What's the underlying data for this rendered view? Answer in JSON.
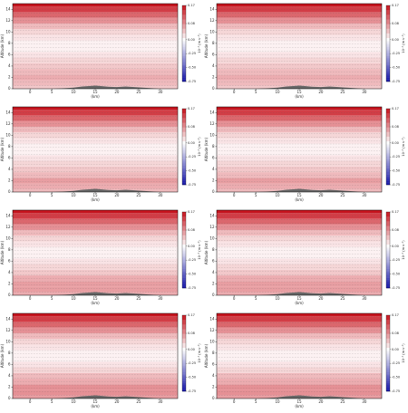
{
  "chart_data": [
    {
      "type": "contour",
      "xlabel": "(km)",
      "ylabel": "Altitude (km)",
      "colorbar_label": "10⁻² (m s⁻¹)",
      "xlim": [
        -4,
        34
      ],
      "ylim": [
        0,
        15
      ],
      "xticks": [
        0,
        5,
        10,
        15,
        20,
        25,
        30
      ],
      "yticks": [
        0,
        2,
        4,
        6,
        8,
        10,
        12,
        14
      ],
      "clim": [
        -0.75,
        0.17
      ],
      "cticks": [
        0.17,
        0.08,
        {
          "value": 0,
          "label": "0.00"
        },
        -0.25,
        {
          "value": -0.5,
          "label": "-0.50"
        },
        -0.75
      ],
      "levels": [
        0,
        1,
        2,
        3,
        4,
        5,
        6,
        7,
        8,
        9,
        10,
        11,
        12,
        13,
        14,
        15
      ],
      "values": [
        0.04,
        0.05,
        0.06,
        0.05,
        0.04,
        0.03,
        0.02,
        0.01,
        0.01,
        0.02,
        0.03,
        0.05,
        0.08,
        0.11,
        0.14,
        0.17
      ],
      "terrain_x": [
        5,
        8,
        10,
        12,
        14,
        15,
        16,
        18,
        20,
        22,
        24,
        26,
        28,
        30
      ],
      "terrain_h": [
        0,
        0.1,
        0.2,
        0.4,
        0.5,
        0.55,
        0.5,
        0.35,
        0.3,
        0.4,
        0.3,
        0.2,
        0.1,
        0
      ]
    },
    {
      "type": "contour",
      "xlabel": "(km)",
      "ylabel": "Altitude (km)",
      "colorbar_label": "10⁻² (m s⁻¹)",
      "xlim": [
        -4,
        34
      ],
      "ylim": [
        0,
        15
      ],
      "xticks": [
        0,
        5,
        10,
        15,
        20,
        25,
        30
      ],
      "yticks": [
        0,
        2,
        4,
        6,
        8,
        10,
        12,
        14
      ],
      "clim": [
        -0.75,
        0.17
      ],
      "cticks": [
        0.17,
        0.08,
        {
          "value": 0,
          "label": "0.00"
        },
        -0.25,
        {
          "value": -0.5,
          "label": "-0.50"
        },
        -0.75
      ],
      "levels": [
        0,
        1,
        2,
        3,
        4,
        5,
        6,
        7,
        8,
        9,
        10,
        11,
        12,
        13,
        14,
        15
      ],
      "values": [
        0.04,
        0.05,
        0.06,
        0.05,
        0.04,
        0.03,
        0.02,
        0.01,
        0.01,
        0.02,
        0.03,
        0.05,
        0.08,
        0.11,
        0.14,
        0.17
      ],
      "terrain_x": [
        5,
        8,
        10,
        12,
        14,
        15,
        16,
        18,
        20,
        22,
        24,
        26,
        28,
        30
      ],
      "terrain_h": [
        0,
        0.1,
        0.2,
        0.4,
        0.5,
        0.55,
        0.5,
        0.35,
        0.3,
        0.4,
        0.3,
        0.2,
        0.1,
        0
      ]
    },
    {
      "type": "contour",
      "xlabel": "(km)",
      "ylabel": "Altitude (km)",
      "colorbar_label": "10⁻² (m s⁻¹)",
      "xlim": [
        -4,
        34
      ],
      "ylim": [
        0,
        15
      ],
      "xticks": [
        0,
        5,
        10,
        15,
        20,
        25,
        30
      ],
      "yticks": [
        0,
        2,
        4,
        6,
        8,
        10,
        12,
        14
      ],
      "clim": [
        -0.75,
        0.17
      ],
      "cticks": [
        0.17,
        0.08,
        {
          "value": 0,
          "label": "0.00"
        },
        -0.25,
        {
          "value": -0.5,
          "label": "-0.50"
        },
        -0.75
      ],
      "levels": [
        0,
        1,
        2,
        3,
        4,
        5,
        6,
        7,
        8,
        9,
        10,
        11,
        12,
        13,
        14,
        15
      ],
      "values": [
        0.05,
        0.06,
        0.07,
        0.05,
        0.04,
        0.03,
        0.02,
        0.01,
        0.01,
        0.02,
        0.03,
        0.05,
        0.08,
        0.11,
        0.14,
        0.17
      ],
      "terrain_x": [
        5,
        8,
        10,
        12,
        14,
        15,
        16,
        18,
        20,
        22,
        24,
        26,
        28,
        30
      ],
      "terrain_h": [
        0,
        0.1,
        0.2,
        0.4,
        0.5,
        0.55,
        0.5,
        0.35,
        0.3,
        0.4,
        0.3,
        0.2,
        0.1,
        0
      ]
    },
    {
      "type": "contour",
      "xlabel": "(km)",
      "ylabel": "Altitude (km)",
      "colorbar_label": "10⁻² (m s⁻¹)",
      "xlim": [
        -4,
        34
      ],
      "ylim": [
        0,
        15
      ],
      "xticks": [
        0,
        5,
        10,
        15,
        20,
        25,
        30
      ],
      "yticks": [
        0,
        2,
        4,
        6,
        8,
        10,
        12,
        14
      ],
      "clim": [
        -0.75,
        0.17
      ],
      "cticks": [
        0.17,
        0.08,
        {
          "value": 0,
          "label": "0.00"
        },
        -0.25,
        {
          "value": -0.5,
          "label": "-0.50"
        },
        -0.75
      ],
      "levels": [
        0,
        1,
        2,
        3,
        4,
        5,
        6,
        7,
        8,
        9,
        10,
        11,
        12,
        13,
        14,
        15
      ],
      "values": [
        0.05,
        0.06,
        0.07,
        0.05,
        0.04,
        0.03,
        0.02,
        0.01,
        0.01,
        0.02,
        0.03,
        0.05,
        0.08,
        0.11,
        0.14,
        0.17
      ],
      "terrain_x": [
        5,
        8,
        10,
        12,
        14,
        15,
        16,
        18,
        20,
        22,
        24,
        26,
        28,
        30
      ],
      "terrain_h": [
        0,
        0.1,
        0.2,
        0.4,
        0.5,
        0.55,
        0.5,
        0.35,
        0.3,
        0.4,
        0.3,
        0.2,
        0.1,
        0
      ]
    },
    {
      "type": "contour",
      "xlabel": "(km)",
      "ylabel": "Altitude (km)",
      "colorbar_label": "10⁻² (m s⁻¹)",
      "xlim": [
        -4,
        34
      ],
      "ylim": [
        0,
        15
      ],
      "xticks": [
        0,
        5,
        10,
        15,
        20,
        25,
        30
      ],
      "yticks": [
        0,
        2,
        4,
        6,
        8,
        10,
        12,
        14
      ],
      "clim": [
        -0.75,
        0.17
      ],
      "cticks": [
        0.17,
        0.08,
        {
          "value": 0,
          "label": "0.00"
        },
        -0.25,
        {
          "value": -0.5,
          "label": "-0.50"
        },
        -0.75
      ],
      "levels": [
        0,
        1,
        2,
        3,
        4,
        5,
        6,
        7,
        8,
        9,
        10,
        11,
        12,
        13,
        14,
        15
      ],
      "values": [
        0.06,
        0.07,
        0.07,
        0.06,
        0.04,
        0.03,
        0.02,
        0.01,
        0.01,
        0.02,
        0.03,
        0.05,
        0.08,
        0.11,
        0.14,
        0.17
      ],
      "terrain_x": [
        5,
        8,
        10,
        12,
        14,
        15,
        16,
        18,
        20,
        22,
        24,
        26,
        28,
        30
      ],
      "terrain_h": [
        0,
        0.1,
        0.2,
        0.4,
        0.5,
        0.55,
        0.5,
        0.35,
        0.3,
        0.4,
        0.3,
        0.2,
        0.1,
        0
      ]
    },
    {
      "type": "contour",
      "xlabel": "(km)",
      "ylabel": "Altitude (km)",
      "colorbar_label": "10⁻² (m s⁻¹)",
      "xlim": [
        -4,
        34
      ],
      "ylim": [
        0,
        15
      ],
      "xticks": [
        0,
        5,
        10,
        15,
        20,
        25,
        30
      ],
      "yticks": [
        0,
        2,
        4,
        6,
        8,
        10,
        12,
        14
      ],
      "clim": [
        -0.75,
        0.17
      ],
      "cticks": [
        0.17,
        0.08,
        {
          "value": 0,
          "label": "0.00"
        },
        -0.25,
        {
          "value": -0.5,
          "label": "-0.50"
        },
        -0.75
      ],
      "levels": [
        0,
        1,
        2,
        3,
        4,
        5,
        6,
        7,
        8,
        9,
        10,
        11,
        12,
        13,
        14,
        15
      ],
      "values": [
        0.06,
        0.07,
        0.07,
        0.06,
        0.04,
        0.03,
        0.02,
        0.01,
        0.01,
        0.02,
        0.03,
        0.05,
        0.08,
        0.11,
        0.14,
        0.17
      ],
      "terrain_x": [
        5,
        8,
        10,
        12,
        14,
        15,
        16,
        18,
        20,
        22,
        24,
        26,
        28,
        30
      ],
      "terrain_h": [
        0,
        0.1,
        0.2,
        0.4,
        0.5,
        0.55,
        0.5,
        0.35,
        0.3,
        0.4,
        0.3,
        0.2,
        0.1,
        0
      ]
    },
    {
      "type": "contour",
      "xlabel": "(km)",
      "ylabel": "Altitude (km)",
      "colorbar_label": "10⁻² (m s⁻¹)",
      "xlim": [
        -4,
        34
      ],
      "ylim": [
        0,
        15
      ],
      "xticks": [
        0,
        5,
        10,
        15,
        20,
        25,
        30
      ],
      "yticks": [
        0,
        2,
        4,
        6,
        8,
        10,
        12,
        14
      ],
      "clim": [
        -0.75,
        0.17
      ],
      "cticks": [
        0.17,
        0.08,
        {
          "value": 0,
          "label": "0.00"
        },
        -0.25,
        {
          "value": -0.5,
          "label": "-0.50"
        },
        -0.75
      ],
      "levels": [
        0,
        1,
        2,
        3,
        4,
        5,
        6,
        7,
        8,
        9,
        10,
        11,
        12,
        13,
        14,
        15
      ],
      "values": [
        0.07,
        0.08,
        0.08,
        0.06,
        0.05,
        0.03,
        0.02,
        0.01,
        0.01,
        0.02,
        0.03,
        0.05,
        0.08,
        0.11,
        0.14,
        0.17
      ],
      "terrain_x": [
        5,
        8,
        10,
        12,
        14,
        15,
        16,
        18,
        20,
        22,
        24,
        26,
        28,
        30
      ],
      "terrain_h": [
        0,
        0.1,
        0.2,
        0.4,
        0.5,
        0.55,
        0.5,
        0.35,
        0.3,
        0.4,
        0.3,
        0.2,
        0.1,
        0
      ]
    },
    {
      "type": "contour",
      "xlabel": "(km)",
      "ylabel": "Altitude (km)",
      "colorbar_label": "10⁻² (m s⁻¹)",
      "xlim": [
        -4,
        34
      ],
      "ylim": [
        0,
        15
      ],
      "xticks": [
        0,
        5,
        10,
        15,
        20,
        25,
        30
      ],
      "yticks": [
        0,
        2,
        4,
        6,
        8,
        10,
        12,
        14
      ],
      "clim": [
        -0.75,
        0.17
      ],
      "cticks": [
        0.17,
        0.08,
        {
          "value": 0,
          "label": "0.00"
        },
        -0.25,
        {
          "value": -0.5,
          "label": "-0.50"
        },
        -0.75
      ],
      "levels": [
        0,
        1,
        2,
        3,
        4,
        5,
        6,
        7,
        8,
        9,
        10,
        11,
        12,
        13,
        14,
        15
      ],
      "values": [
        0.07,
        0.08,
        0.08,
        0.06,
        0.05,
        0.03,
        0.02,
        0.01,
        0.01,
        0.02,
        0.03,
        0.05,
        0.08,
        0.11,
        0.14,
        0.17
      ],
      "terrain_x": [
        5,
        8,
        10,
        12,
        14,
        15,
        16,
        18,
        20,
        22,
        24,
        26,
        28,
        30
      ],
      "terrain_h": [
        0,
        0.1,
        0.2,
        0.4,
        0.5,
        0.55,
        0.5,
        0.35,
        0.3,
        0.4,
        0.3,
        0.2,
        0.1,
        0
      ]
    }
  ]
}
